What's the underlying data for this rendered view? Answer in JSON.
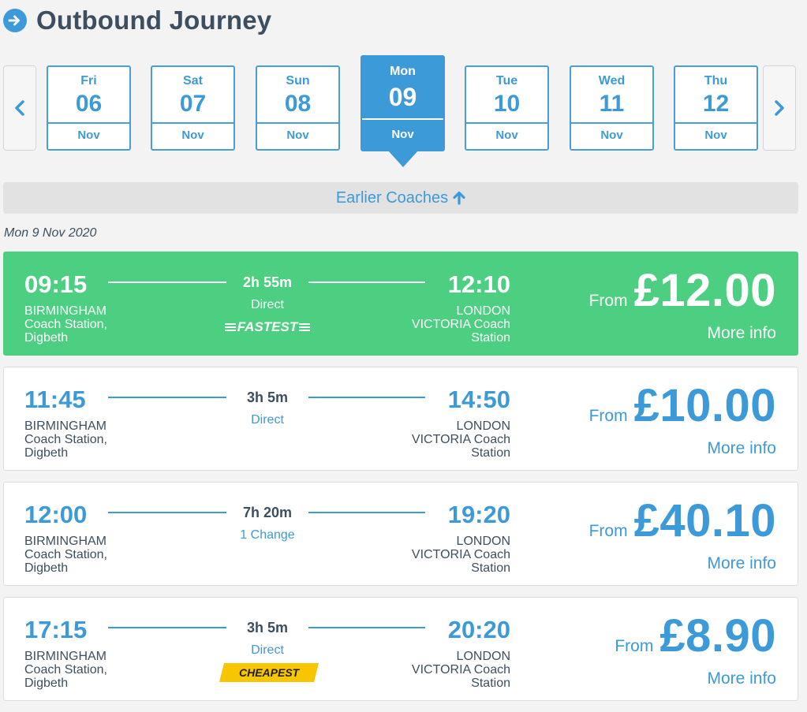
{
  "header": {
    "title": "Outbound Journey",
    "icon": "arrow-right-circle-icon"
  },
  "dates": [
    {
      "dow": "Fri",
      "num": "06",
      "mon": "Nov"
    },
    {
      "dow": "Sat",
      "num": "07",
      "mon": "Nov"
    },
    {
      "dow": "Sun",
      "num": "08",
      "mon": "Nov"
    },
    {
      "dow": "Mon",
      "num": "09",
      "mon": "Nov"
    },
    {
      "dow": "Tue",
      "num": "10",
      "mon": "Nov"
    },
    {
      "dow": "Wed",
      "num": "11",
      "mon": "Nov"
    },
    {
      "dow": "Thu",
      "num": "12",
      "mon": "Nov"
    }
  ],
  "earlier": {
    "label": "Earlier Coaches"
  },
  "date_label": "Mon 9 Nov 2020",
  "journeys": [
    {
      "dep": "09:15",
      "arr": "12:10",
      "duration": "2h 55m",
      "change": "Direct",
      "origin": [
        "BIRMINGHAM",
        "Coach Station,",
        "Digbeth"
      ],
      "dest": [
        "LONDON",
        "VICTORIA Coach",
        "Station"
      ],
      "from": "From",
      "price": "£12.00",
      "more": "More info",
      "badge": "FASTEST"
    },
    {
      "dep": "11:45",
      "arr": "14:50",
      "duration": "3h 5m",
      "change": "Direct",
      "origin": [
        "BIRMINGHAM",
        "Coach Station,",
        "Digbeth"
      ],
      "dest": [
        "LONDON",
        "VICTORIA Coach",
        "Station"
      ],
      "from": "From",
      "price": "£10.00",
      "more": "More info"
    },
    {
      "dep": "12:00",
      "arr": "19:20",
      "duration": "7h 20m",
      "change": "1 Change",
      "origin": [
        "BIRMINGHAM",
        "Coach Station,",
        "Digbeth"
      ],
      "dest": [
        "LONDON",
        "VICTORIA Coach",
        "Station"
      ],
      "from": "From",
      "price": "£40.10",
      "more": "More info"
    },
    {
      "dep": "17:15",
      "arr": "20:20",
      "duration": "3h 5m",
      "change": "Direct",
      "origin": [
        "BIRMINGHAM",
        "Coach Station,",
        "Digbeth"
      ],
      "dest": [
        "LONDON",
        "VICTORIA Coach",
        "Station"
      ],
      "from": "From",
      "price": "£8.90",
      "more": "More info",
      "badge": "CHEAPEST"
    }
  ],
  "colors": {
    "accent": "#3d9ad8",
    "fastest": "#4dcf82",
    "cheapest": "#f7c600",
    "text": "#3d4f5f"
  }
}
